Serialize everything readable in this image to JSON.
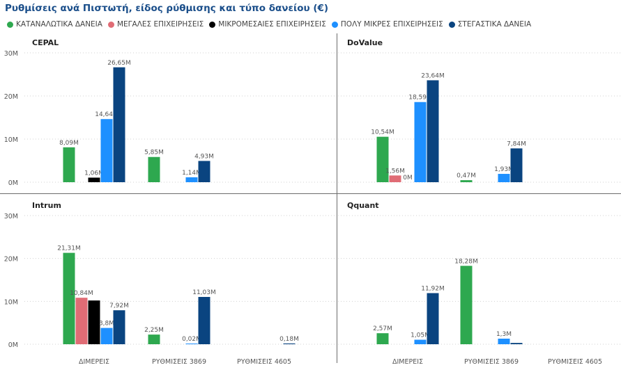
{
  "title": "Ρυθμίσεις ανά Πιστωτή, είδος ρύθμισης και τύπο δανείου (€)",
  "legend": [
    {
      "name": "ΚΑΤΑΝΑΛΩΤΙΚΑ ΔΑΝΕΙΑ",
      "color": "#2ea84f"
    },
    {
      "name": "ΜΕΓΑΛΕΣ ΕΠΙΧΕΙΡΗΣΕΙΣ",
      "color": "#e06c75"
    },
    {
      "name": "ΜΙΚΡΟΜΕΣΑΙΕΣ ΕΠΙΧΕΙΡΗΣΕΙΣ",
      "color": "#000000"
    },
    {
      "name": "ΠΟΛΥ ΜΙΚΡΕΣ ΕΠΙΧΕΙΡΗΣΕΙΣ",
      "color": "#1e90ff"
    },
    {
      "name": "ΣΤΕΓΑΣΤΙΚΑ ΔΑΝΕΙΑ",
      "color": "#0a4480"
    }
  ],
  "chart_data": {
    "type": "bar",
    "categories": [
      "ΔΙΜΕΡΕΙΣ",
      "ΡΥΘΜΙΣΕΙΣ 3869",
      "ΡΥΘΜΙΣΕΙΣ 4605"
    ],
    "yticks": [
      "0M",
      "10M",
      "20M",
      "30M"
    ],
    "ylim": [
      0,
      30
    ],
    "unit": "M",
    "series_names": [
      "ΚΑΤΑΝΑΛΩΤΙΚΑ ΔΑΝΕΙΑ",
      "ΜΕΓΑΛΕΣ ΕΠΙΧΕΙΡΗΣΕΙΣ",
      "ΜΙΚΡΟΜΕΣΑΙΕΣ ΕΠΙΧΕΙΡΗΣΕΙΣ",
      "ΠΟΛΥ ΜΙΚΡΕΣ ΕΠΙΧΕΙΡΗΣΕΙΣ",
      "ΣΤΕΓΑΣΤΙΚΑ ΔΑΝΕΙΑ"
    ],
    "panels": [
      {
        "name": "CEPAL",
        "values": [
          [
            8.09,
            null,
            1.06,
            14.64,
            26.65
          ],
          [
            5.85,
            null,
            null,
            1.14,
            4.93
          ],
          [
            null,
            null,
            null,
            null,
            null
          ]
        ],
        "labels": [
          [
            "8,09M",
            "",
            "1,06M",
            "14,64M",
            "26,65M"
          ],
          [
            "5,85M",
            "",
            "",
            "1,14M",
            "4,93M"
          ],
          [
            "",
            "",
            "",
            "",
            ""
          ]
        ]
      },
      {
        "name": "DoValue",
        "values": [
          [
            10.54,
            1.56,
            0,
            18.59,
            23.64
          ],
          [
            0.47,
            null,
            null,
            1.93,
            7.84
          ],
          [
            null,
            null,
            null,
            null,
            null
          ]
        ],
        "labels": [
          [
            "10,54M",
            "1,56M",
            "0M",
            "18,59M",
            "23,64M"
          ],
          [
            "0,47M",
            "",
            "",
            "1,93M",
            "7,84M"
          ],
          [
            "",
            "",
            "",
            "",
            ""
          ]
        ]
      },
      {
        "name": "Intrum",
        "values": [
          [
            21.31,
            10.84,
            10.2,
            3.8,
            7.92
          ],
          [
            2.25,
            null,
            null,
            0.02,
            11.03
          ],
          [
            null,
            null,
            null,
            null,
            0.18
          ]
        ],
        "labels": [
          [
            "21,31M",
            "10,84M",
            "",
            "3,8M",
            "7,92M"
          ],
          [
            "2,25M",
            "",
            "",
            "0,02M",
            "11,03M"
          ],
          [
            "",
            "",
            "",
            "",
            "0,18M"
          ]
        ]
      },
      {
        "name": "Qquant",
        "values": [
          [
            2.57,
            null,
            null,
            1.05,
            11.92
          ],
          [
            18.28,
            null,
            null,
            1.3,
            0.3
          ],
          [
            null,
            null,
            null,
            null,
            null
          ]
        ],
        "labels": [
          [
            "2,57M",
            "",
            "",
            "1,05M",
            "11,92M"
          ],
          [
            "18,28M",
            "",
            "",
            "1,3M",
            ""
          ],
          [
            "",
            "",
            "",
            "",
            ""
          ]
        ]
      }
    ]
  }
}
